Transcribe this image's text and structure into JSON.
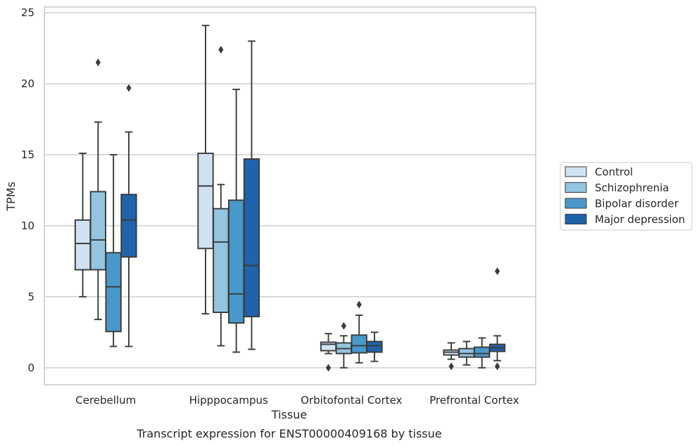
{
  "caption": "Transcript expression for ENST00000409168 by tissue",
  "chart_data": {
    "type": "box",
    "xlabel": "Tissue",
    "ylabel": "TPMs",
    "ylim": [
      -1.2,
      25.4
    ],
    "yticks": [
      0,
      5,
      10,
      15,
      20,
      25
    ],
    "grid": "horizontal",
    "legend_position": "right",
    "categories": [
      "Cerebellum",
      "Hipppocampus",
      "Orbitofontal Cortex",
      "Prefrontal Cortex"
    ],
    "series": [
      {
        "name": "Control",
        "color": "#d0e1f2",
        "boxes": [
          {
            "whislo": 5.0,
            "q1": 6.9,
            "med": 8.75,
            "q3": 10.4,
            "whishi": 15.1,
            "fliers": []
          },
          {
            "whislo": 3.8,
            "q1": 8.4,
            "med": 12.8,
            "q3": 15.1,
            "whishi": 24.1,
            "fliers": []
          },
          {
            "whislo": 1.0,
            "q1": 1.2,
            "med": 1.65,
            "q3": 1.8,
            "whishi": 2.4,
            "fliers": [
              0.0
            ]
          },
          {
            "whislo": 0.6,
            "q1": 0.9,
            "med": 1.1,
            "q3": 1.25,
            "whishi": 1.75,
            "fliers": [
              0.1
            ]
          }
        ]
      },
      {
        "name": "Schizophrenia",
        "color": "#94c4df",
        "boxes": [
          {
            "whislo": 3.4,
            "q1": 6.9,
            "med": 9.0,
            "q3": 12.4,
            "whishi": 17.3,
            "fliers": [
              21.5
            ]
          },
          {
            "whislo": 1.55,
            "q1": 3.9,
            "med": 8.85,
            "q3": 11.2,
            "whishi": 12.9,
            "fliers": [
              22.4
            ]
          },
          {
            "whislo": 0.0,
            "q1": 1.0,
            "med": 1.35,
            "q3": 1.75,
            "whishi": 2.25,
            "fliers": [
              2.95
            ]
          },
          {
            "whislo": 0.2,
            "q1": 0.75,
            "med": 1.0,
            "q3": 1.35,
            "whishi": 1.85,
            "fliers": []
          }
        ]
      },
      {
        "name": "Bipolar disorder",
        "color": "#4a98c9",
        "boxes": [
          {
            "whislo": 1.5,
            "q1": 2.55,
            "med": 5.7,
            "q3": 8.1,
            "whishi": 15.0,
            "fliers": []
          },
          {
            "whislo": 1.1,
            "q1": 3.15,
            "med": 5.2,
            "q3": 11.8,
            "whishi": 19.6,
            "fliers": []
          },
          {
            "whislo": 0.35,
            "q1": 1.05,
            "med": 1.55,
            "q3": 2.3,
            "whishi": 3.7,
            "fliers": [
              4.45
            ]
          },
          {
            "whislo": 0.0,
            "q1": 0.75,
            "med": 1.0,
            "q3": 1.45,
            "whishi": 2.1,
            "fliers": []
          }
        ]
      },
      {
        "name": "Major depression",
        "color": "#2163aa",
        "boxes": [
          {
            "whislo": 1.5,
            "q1": 7.8,
            "med": 10.4,
            "q3": 12.2,
            "whishi": 16.6,
            "fliers": [
              19.7
            ]
          },
          {
            "whislo": 1.3,
            "q1": 3.6,
            "med": 7.2,
            "q3": 14.7,
            "whishi": 23.0,
            "fliers": []
          },
          {
            "whislo": 0.45,
            "q1": 1.1,
            "med": 1.55,
            "q3": 1.85,
            "whishi": 2.5,
            "fliers": []
          },
          {
            "whislo": 0.5,
            "q1": 1.15,
            "med": 1.4,
            "q3": 1.65,
            "whishi": 2.25,
            "fliers": [
              0.1,
              6.8
            ]
          }
        ]
      }
    ]
  }
}
